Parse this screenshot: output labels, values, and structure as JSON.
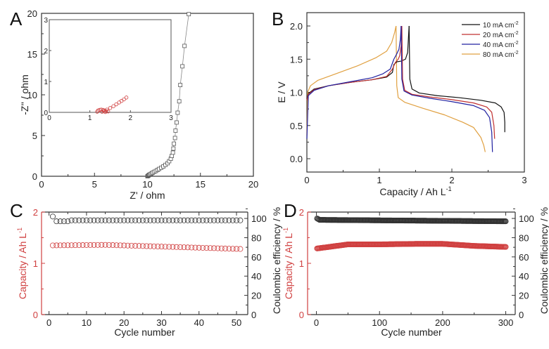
{
  "chart_data": [
    {
      "panel": "A",
      "type": "scatter",
      "xlabel": "Z' / ohm",
      "ylabel": "-Z'' / ohm",
      "xlim": [
        0,
        20
      ],
      "ylim": [
        0,
        20
      ],
      "xticks": [
        "0",
        "5",
        "10",
        "15",
        "20"
      ],
      "yticks": [
        "0",
        "5",
        "10",
        "15",
        "20"
      ],
      "series": [
        {
          "name": "main",
          "color": "#555555",
          "marker": "square",
          "line": true,
          "x": [
            10.0,
            10.05,
            10.1,
            10.15,
            10.2,
            10.3,
            10.4,
            10.5,
            10.65,
            10.8,
            10.95,
            11.1,
            11.3,
            11.5,
            11.7,
            11.9,
            12.05,
            12.2,
            12.3,
            12.4,
            12.45,
            12.5,
            12.6,
            12.65,
            12.75,
            12.85,
            13.0,
            13.1,
            13.3,
            13.5,
            13.9
          ],
          "y": [
            0.0,
            0.05,
            0.1,
            0.15,
            0.2,
            0.28,
            0.36,
            0.45,
            0.55,
            0.65,
            0.78,
            0.9,
            1.05,
            1.2,
            1.4,
            1.6,
            1.85,
            2.15,
            2.5,
            2.9,
            3.4,
            4.0,
            4.7,
            5.6,
            6.6,
            7.8,
            9.2,
            11.2,
            13.5,
            16.0,
            19.9
          ]
        }
      ],
      "inset": {
        "xlim": [
          0,
          3
        ],
        "ylim": [
          0,
          3
        ],
        "xticks": [
          "0",
          "1",
          "2",
          "3"
        ],
        "yticks": [
          "0",
          "1",
          "2",
          "3"
        ],
        "series": [
          {
            "name": "inset",
            "color": "#d04040",
            "marker": "circle",
            "x": [
              1.18,
              1.2,
              1.24,
              1.28,
              1.32,
              1.36,
              1.4,
              1.45,
              1.38,
              1.3,
              1.34,
              1.42,
              1.5,
              1.58,
              1.65,
              1.72,
              1.78,
              1.84,
              1.9
            ],
            "y": [
              0.02,
              0.06,
              0.08,
              0.09,
              0.08,
              0.06,
              0.04,
              0.03,
              0.01,
              0.02,
              0.05,
              0.09,
              0.14,
              0.2,
              0.26,
              0.32,
              0.37,
              0.42,
              0.48
            ]
          }
        ]
      }
    },
    {
      "panel": "B",
      "type": "line",
      "xlabel": "Capacity / Ah L",
      "xlabel_sup": "-1",
      "ylabel": "E / V",
      "xlim": [
        0,
        3
      ],
      "ylim": [
        -0.2,
        2.2
      ],
      "xticks": [
        "0",
        "1",
        "2",
        "3"
      ],
      "yticks": [
        "0.0",
        "0.5",
        "1.0",
        "1.5",
        "2.0"
      ],
      "legend_position": "top-right",
      "series": [
        {
          "name": "10 mA cm",
          "sup": "-2",
          "color": "#111111",
          "charge": {
            "x": [
              0,
              0.02,
              0.1,
              0.3,
              0.6,
              0.9,
              1.1,
              1.18,
              1.2,
              1.24,
              1.3,
              1.36,
              1.39,
              1.4,
              1.41
            ],
            "y": [
              0.9,
              0.98,
              1.05,
              1.1,
              1.15,
              1.19,
              1.23,
              1.3,
              1.42,
              1.46,
              1.47,
              1.5,
              1.6,
              1.8,
              2.0
            ]
          },
          "discharge": {
            "x": [
              1.41,
              1.42,
              1.45,
              1.55,
              1.8,
              2.1,
              2.4,
              2.6,
              2.68,
              2.72,
              2.73,
              2.73
            ],
            "y": [
              2.0,
              1.2,
              1.05,
              0.99,
              0.95,
              0.92,
              0.88,
              0.84,
              0.78,
              0.7,
              0.55,
              0.4
            ]
          }
        },
        {
          "name": "20 mA cm",
          "sup": "-2",
          "color": "#c03030",
          "charge": {
            "x": [
              0,
              0.02,
              0.1,
              0.3,
              0.6,
              0.9,
              1.1,
              1.18,
              1.22,
              1.26,
              1.28,
              1.3,
              1.31
            ],
            "y": [
              0.88,
              0.97,
              1.04,
              1.1,
              1.15,
              1.19,
              1.24,
              1.35,
              1.45,
              1.5,
              1.55,
              1.7,
              2.0
            ]
          },
          "discharge": {
            "x": [
              1.31,
              1.32,
              1.35,
              1.45,
              1.7,
              2.0,
              2.3,
              2.48,
              2.55,
              2.58,
              2.59
            ],
            "y": [
              2.0,
              1.2,
              1.03,
              0.97,
              0.93,
              0.89,
              0.84,
              0.78,
              0.7,
              0.5,
              0.3
            ]
          }
        },
        {
          "name": "40 mA cm",
          "sup": "-2",
          "color": "#2020a0",
          "charge": {
            "x": [
              0,
              0.02,
              0.1,
              0.3,
              0.6,
              0.9,
              1.05,
              1.15,
              1.2,
              1.24,
              1.27,
              1.29,
              1.3
            ],
            "y": [
              0.3,
              0.95,
              1.03,
              1.1,
              1.16,
              1.22,
              1.28,
              1.35,
              1.5,
              1.58,
              1.65,
              1.8,
              2.0
            ]
          },
          "discharge": {
            "x": [
              1.3,
              1.31,
              1.34,
              1.45,
              1.7,
              2.0,
              2.3,
              2.45,
              2.52,
              2.55,
              2.56
            ],
            "y": [
              2.0,
              1.2,
              1.02,
              0.96,
              0.91,
              0.86,
              0.8,
              0.73,
              0.62,
              0.4,
              0.1
            ]
          }
        },
        {
          "name": "80 mA cm",
          "sup": "-2",
          "color": "#e0a040",
          "charge": {
            "x": [
              0,
              0.01,
              0.05,
              0.15,
              0.4,
              0.7,
              0.95,
              1.1,
              1.17,
              1.21,
              1.23
            ],
            "y": [
              0.35,
              1.0,
              1.1,
              1.18,
              1.28,
              1.4,
              1.52,
              1.62,
              1.75,
              1.9,
              2.0
            ]
          },
          "discharge": {
            "x": [
              1.23,
              1.24,
              1.26,
              1.35,
              1.6,
              1.9,
              2.15,
              2.3,
              2.36,
              2.4,
              2.44,
              2.46
            ],
            "y": [
              2.0,
              1.1,
              0.92,
              0.85,
              0.76,
              0.66,
              0.55,
              0.47,
              0.38,
              0.32,
              0.2,
              0.1
            ]
          }
        }
      ]
    },
    {
      "panel": "C",
      "type": "scatter",
      "xlabel": "Cycle number",
      "ylabel_left": "Capacity / Ah L",
      "ylabel_left_sup": "-1",
      "ylabel_right": "Coulombic efficiency / %",
      "xlim": [
        -2,
        53
      ],
      "ylim_left": [
        0,
        2
      ],
      "ylim_right": [
        0,
        111
      ],
      "xticks": [
        "0",
        "10",
        "20",
        "30",
        "40",
        "50"
      ],
      "yticks_left": [
        "0",
        "1",
        "2"
      ],
      "yticks_right": [
        "0",
        "20",
        "40",
        "60",
        "80",
        "100"
      ],
      "capacity_color": "#d04040",
      "ce_color": "#333333",
      "cycles": 51,
      "capacity": {
        "start": 1.35,
        "mid_cycle": 15,
        "mid": 1.36,
        "end": 1.28
      },
      "ce": {
        "first": 102,
        "second": 97,
        "plateau": 98
      }
    },
    {
      "panel": "D",
      "type": "scatter",
      "xlabel": "Cycle number",
      "ylabel_left": "Capacity / Ah L",
      "ylabel_left_sup": "-1",
      "ylabel_right": "Coulombic efficiency / %",
      "xlim": [
        -14,
        315
      ],
      "ylim_left": [
        0,
        2
      ],
      "ylim_right": [
        0,
        111
      ],
      "xticks": [
        "0",
        "100",
        "200",
        "300"
      ],
      "yticks_left": [
        "0",
        "1",
        "2"
      ],
      "yticks_right": [
        "0",
        "20",
        "40",
        "60",
        "80",
        "100"
      ],
      "capacity_color": "#d04040",
      "ce_color": "#333333",
      "cycles": 300,
      "capacity_keypoints": {
        "x": [
          1,
          20,
          50,
          100,
          160,
          200,
          250,
          300
        ],
        "y": [
          1.29,
          1.32,
          1.37,
          1.37,
          1.38,
          1.38,
          1.34,
          1.32
        ]
      },
      "ce_keypoints": {
        "x": [
          1,
          5,
          100,
          200,
          300
        ],
        "y": [
          100,
          98.5,
          98,
          97.5,
          97
        ]
      }
    }
  ],
  "panels": {
    "A": {
      "letter": "A"
    },
    "B": {
      "letter": "B"
    },
    "C": {
      "letter": "C"
    },
    "D": {
      "letter": "D"
    }
  }
}
